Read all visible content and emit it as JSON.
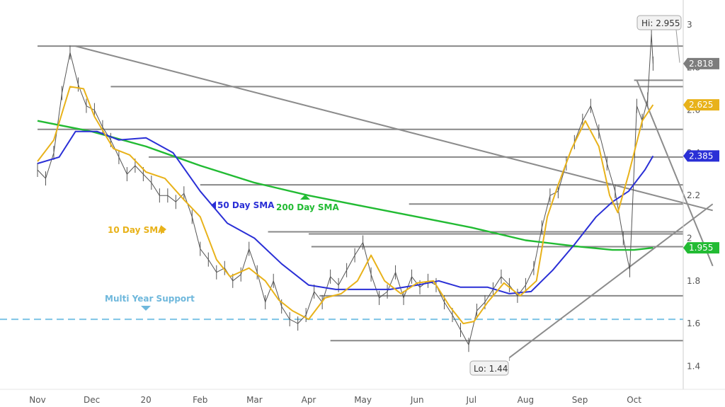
{
  "chart_data": {
    "type": "line",
    "title": "",
    "xlabel": "",
    "ylabel": "",
    "ylim": [
      1.3,
      3.05
    ],
    "grid": false,
    "x_ticks": [
      "Nov",
      "Dec",
      "20",
      "Feb",
      "Mar",
      "Apr",
      "May",
      "Jun",
      "Jul",
      "Aug",
      "Sep",
      "Oct"
    ],
    "y_ticks": [
      3,
      2.8,
      2.6,
      2.4,
      2.2,
      2,
      1.8,
      1.6,
      1.4
    ],
    "colors": {
      "price": "#555555",
      "sma10": "#e8b21a",
      "sma50": "#2a2fd6",
      "sma200": "#22bb33",
      "support_band": "#7ec4e6",
      "levels": "#888888",
      "gray_badge": "#7d7d7d"
    },
    "series": [
      {
        "name": "10 Day SMA",
        "values": [
          {
            "x": 0.0,
            "y": 2.36
          },
          {
            "x": 0.3,
            "y": 2.46
          },
          {
            "x": 0.6,
            "y": 2.71
          },
          {
            "x": 0.85,
            "y": 2.7
          },
          {
            "x": 1.05,
            "y": 2.57
          },
          {
            "x": 1.4,
            "y": 2.42
          },
          {
            "x": 1.7,
            "y": 2.39
          },
          {
            "x": 2.0,
            "y": 2.31
          },
          {
            "x": 2.35,
            "y": 2.28
          },
          {
            "x": 2.7,
            "y": 2.18
          },
          {
            "x": 3.0,
            "y": 2.1
          },
          {
            "x": 3.3,
            "y": 1.9
          },
          {
            "x": 3.55,
            "y": 1.82
          },
          {
            "x": 3.9,
            "y": 1.86
          },
          {
            "x": 4.2,
            "y": 1.8
          },
          {
            "x": 4.45,
            "y": 1.71
          },
          {
            "x": 4.7,
            "y": 1.66
          },
          {
            "x": 5.0,
            "y": 1.62
          },
          {
            "x": 5.3,
            "y": 1.72
          },
          {
            "x": 5.6,
            "y": 1.74
          },
          {
            "x": 5.9,
            "y": 1.8
          },
          {
            "x": 6.15,
            "y": 1.92
          },
          {
            "x": 6.4,
            "y": 1.8
          },
          {
            "x": 6.7,
            "y": 1.74
          },
          {
            "x": 7.0,
            "y": 1.79
          },
          {
            "x": 7.3,
            "y": 1.8
          },
          {
            "x": 7.6,
            "y": 1.68
          },
          {
            "x": 7.85,
            "y": 1.6
          },
          {
            "x": 8.05,
            "y": 1.61
          },
          {
            "x": 8.3,
            "y": 1.7
          },
          {
            "x": 8.6,
            "y": 1.79
          },
          {
            "x": 8.9,
            "y": 1.73
          },
          {
            "x": 9.2,
            "y": 1.8
          },
          {
            "x": 9.4,
            "y": 2.1
          },
          {
            "x": 9.6,
            "y": 2.25
          },
          {
            "x": 9.85,
            "y": 2.42
          },
          {
            "x": 10.1,
            "y": 2.55
          },
          {
            "x": 10.35,
            "y": 2.43
          },
          {
            "x": 10.55,
            "y": 2.2
          },
          {
            "x": 10.7,
            "y": 2.12
          },
          {
            "x": 10.9,
            "y": 2.3
          },
          {
            "x": 11.15,
            "y": 2.55
          },
          {
            "x": 11.35,
            "y": 2.625
          }
        ]
      },
      {
        "name": "50 Day SMA",
        "values": [
          {
            "x": 0.0,
            "y": 2.35
          },
          {
            "x": 0.4,
            "y": 2.38
          },
          {
            "x": 0.7,
            "y": 2.5
          },
          {
            "x": 1.1,
            "y": 2.5
          },
          {
            "x": 1.5,
            "y": 2.46
          },
          {
            "x": 2.0,
            "y": 2.47
          },
          {
            "x": 2.5,
            "y": 2.4
          },
          {
            "x": 3.0,
            "y": 2.22
          },
          {
            "x": 3.5,
            "y": 2.07
          },
          {
            "x": 4.0,
            "y": 2.0
          },
          {
            "x": 4.5,
            "y": 1.88
          },
          {
            "x": 5.0,
            "y": 1.78
          },
          {
            "x": 5.5,
            "y": 1.76
          },
          {
            "x": 6.0,
            "y": 1.76
          },
          {
            "x": 6.5,
            "y": 1.76
          },
          {
            "x": 7.0,
            "y": 1.78
          },
          {
            "x": 7.4,
            "y": 1.8
          },
          {
            "x": 7.8,
            "y": 1.77
          },
          {
            "x": 8.3,
            "y": 1.77
          },
          {
            "x": 8.7,
            "y": 1.74
          },
          {
            "x": 9.1,
            "y": 1.75
          },
          {
            "x": 9.5,
            "y": 1.85
          },
          {
            "x": 9.9,
            "y": 1.97
          },
          {
            "x": 10.3,
            "y": 2.1
          },
          {
            "x": 10.6,
            "y": 2.17
          },
          {
            "x": 10.9,
            "y": 2.22
          },
          {
            "x": 11.2,
            "y": 2.32
          },
          {
            "x": 11.35,
            "y": 2.385
          }
        ]
      },
      {
        "name": "200 Day SMA",
        "values": [
          {
            "x": 0.0,
            "y": 2.55
          },
          {
            "x": 1.0,
            "y": 2.5
          },
          {
            "x": 2.0,
            "y": 2.43
          },
          {
            "x": 3.0,
            "y": 2.34
          },
          {
            "x": 4.0,
            "y": 2.26
          },
          {
            "x": 5.0,
            "y": 2.2
          },
          {
            "x": 6.0,
            "y": 2.15
          },
          {
            "x": 7.0,
            "y": 2.1
          },
          {
            "x": 8.0,
            "y": 2.05
          },
          {
            "x": 9.0,
            "y": 1.99
          },
          {
            "x": 10.0,
            "y": 1.96
          },
          {
            "x": 10.6,
            "y": 1.945
          },
          {
            "x": 11.0,
            "y": 1.945
          },
          {
            "x": 11.35,
            "y": 1.955
          }
        ]
      },
      {
        "name": "Price",
        "values": [
          {
            "x": 0.0,
            "y": 2.32
          },
          {
            "x": 0.15,
            "y": 2.28
          },
          {
            "x": 0.3,
            "y": 2.4
          },
          {
            "x": 0.45,
            "y": 2.68
          },
          {
            "x": 0.6,
            "y": 2.87
          },
          {
            "x": 0.75,
            "y": 2.72
          },
          {
            "x": 0.9,
            "y": 2.62
          },
          {
            "x": 1.05,
            "y": 2.6
          },
          {
            "x": 1.2,
            "y": 2.52
          },
          {
            "x": 1.35,
            "y": 2.46
          },
          {
            "x": 1.5,
            "y": 2.38
          },
          {
            "x": 1.65,
            "y": 2.3
          },
          {
            "x": 1.8,
            "y": 2.34
          },
          {
            "x": 1.95,
            "y": 2.3
          },
          {
            "x": 2.1,
            "y": 2.26
          },
          {
            "x": 2.25,
            "y": 2.2
          },
          {
            "x": 2.4,
            "y": 2.2
          },
          {
            "x": 2.55,
            "y": 2.17
          },
          {
            "x": 2.7,
            "y": 2.21
          },
          {
            "x": 2.85,
            "y": 2.1
          },
          {
            "x": 3.0,
            "y": 1.95
          },
          {
            "x": 3.15,
            "y": 1.9
          },
          {
            "x": 3.3,
            "y": 1.84
          },
          {
            "x": 3.45,
            "y": 1.86
          },
          {
            "x": 3.6,
            "y": 1.8
          },
          {
            "x": 3.75,
            "y": 1.83
          },
          {
            "x": 3.9,
            "y": 1.95
          },
          {
            "x": 4.05,
            "y": 1.84
          },
          {
            "x": 4.2,
            "y": 1.7
          },
          {
            "x": 4.35,
            "y": 1.8
          },
          {
            "x": 4.5,
            "y": 1.68
          },
          {
            "x": 4.65,
            "y": 1.62
          },
          {
            "x": 4.8,
            "y": 1.6
          },
          {
            "x": 4.95,
            "y": 1.64
          },
          {
            "x": 5.1,
            "y": 1.75
          },
          {
            "x": 5.25,
            "y": 1.7
          },
          {
            "x": 5.4,
            "y": 1.82
          },
          {
            "x": 5.55,
            "y": 1.78
          },
          {
            "x": 5.7,
            "y": 1.85
          },
          {
            "x": 5.85,
            "y": 1.92
          },
          {
            "x": 6.0,
            "y": 1.98
          },
          {
            "x": 6.15,
            "y": 1.83
          },
          {
            "x": 6.3,
            "y": 1.72
          },
          {
            "x": 6.45,
            "y": 1.75
          },
          {
            "x": 6.6,
            "y": 1.84
          },
          {
            "x": 6.75,
            "y": 1.72
          },
          {
            "x": 6.9,
            "y": 1.82
          },
          {
            "x": 7.05,
            "y": 1.77
          },
          {
            "x": 7.2,
            "y": 1.8
          },
          {
            "x": 7.35,
            "y": 1.78
          },
          {
            "x": 7.5,
            "y": 1.7
          },
          {
            "x": 7.65,
            "y": 1.64
          },
          {
            "x": 7.8,
            "y": 1.57
          },
          {
            "x": 7.95,
            "y": 1.5
          },
          {
            "x": 8.1,
            "y": 1.66
          },
          {
            "x": 8.25,
            "y": 1.7
          },
          {
            "x": 8.4,
            "y": 1.76
          },
          {
            "x": 8.55,
            "y": 1.82
          },
          {
            "x": 8.7,
            "y": 1.78
          },
          {
            "x": 8.85,
            "y": 1.73
          },
          {
            "x": 9.0,
            "y": 1.78
          },
          {
            "x": 9.15,
            "y": 1.86
          },
          {
            "x": 9.3,
            "y": 2.05
          },
          {
            "x": 9.45,
            "y": 2.2
          },
          {
            "x": 9.6,
            "y": 2.22
          },
          {
            "x": 9.75,
            "y": 2.35
          },
          {
            "x": 9.9,
            "y": 2.45
          },
          {
            "x": 10.05,
            "y": 2.55
          },
          {
            "x": 10.2,
            "y": 2.62
          },
          {
            "x": 10.35,
            "y": 2.5
          },
          {
            "x": 10.5,
            "y": 2.35
          },
          {
            "x": 10.65,
            "y": 2.22
          },
          {
            "x": 10.8,
            "y": 2.0
          },
          {
            "x": 10.92,
            "y": 1.85
          },
          {
            "x": 11.05,
            "y": 2.62
          },
          {
            "x": 11.15,
            "y": 2.55
          },
          {
            "x": 11.25,
            "y": 2.65
          },
          {
            "x": 11.32,
            "y": 2.955
          },
          {
            "x": 11.35,
            "y": 2.818
          }
        ]
      }
    ],
    "horizontal_levels": [
      {
        "y": 2.9,
        "x_start": 0.0
      },
      {
        "y": 2.71,
        "x_start": 1.35
      },
      {
        "y": 2.51,
        "x_start": 0.0
      },
      {
        "y": 2.38,
        "x_start": 2.05
      },
      {
        "y": 2.25,
        "x_start": 3.0
      },
      {
        "y": 2.16,
        "x_start": 6.85
      },
      {
        "y": 2.03,
        "x_start": 4.25
      },
      {
        "y": 2.02,
        "x_start": 5.0
      },
      {
        "y": 1.96,
        "x_start": 5.05
      },
      {
        "y": 1.73,
        "x_start": 5.2
      },
      {
        "y": 1.52,
        "x_start": 5.4
      },
      {
        "y": 2.74,
        "x_start": 11.0
      }
    ],
    "trend_lines": [
      {
        "from": {
          "x": 0.7,
          "y": 2.9
        },
        "to": {
          "x": 12.45,
          "y": 2.13
        }
      },
      {
        "from": {
          "x": 8.7,
          "y": 1.44
        },
        "to": {
          "x": 12.45,
          "y": 2.16
        }
      },
      {
        "from": {
          "x": 11.05,
          "y": 2.74
        },
        "to": {
          "x": 12.45,
          "y": 1.87
        }
      }
    ],
    "support_level": {
      "y": 1.62,
      "label": "Multi Year Support"
    },
    "annotations": {
      "sma10_label": "10 Day SMA",
      "sma50_label": "50 Day SMA",
      "sma200_label": "200 Day SMA",
      "hi_label": "Hi: 2.955",
      "lo_label": "Lo: 1.44",
      "hi_point": {
        "x": 12.43,
        "y": 2.955
      },
      "lo_point": {
        "x": 8.7,
        "y": 1.44
      }
    },
    "price_badges": [
      {
        "value": "2.818",
        "y": 2.818,
        "color": "gray"
      },
      {
        "value": "2.625",
        "y": 2.625,
        "color": "yellow"
      },
      {
        "value": "2.385",
        "y": 2.385,
        "color": "blue"
      },
      {
        "value": "1.955",
        "y": 1.955,
        "color": "green"
      }
    ]
  }
}
